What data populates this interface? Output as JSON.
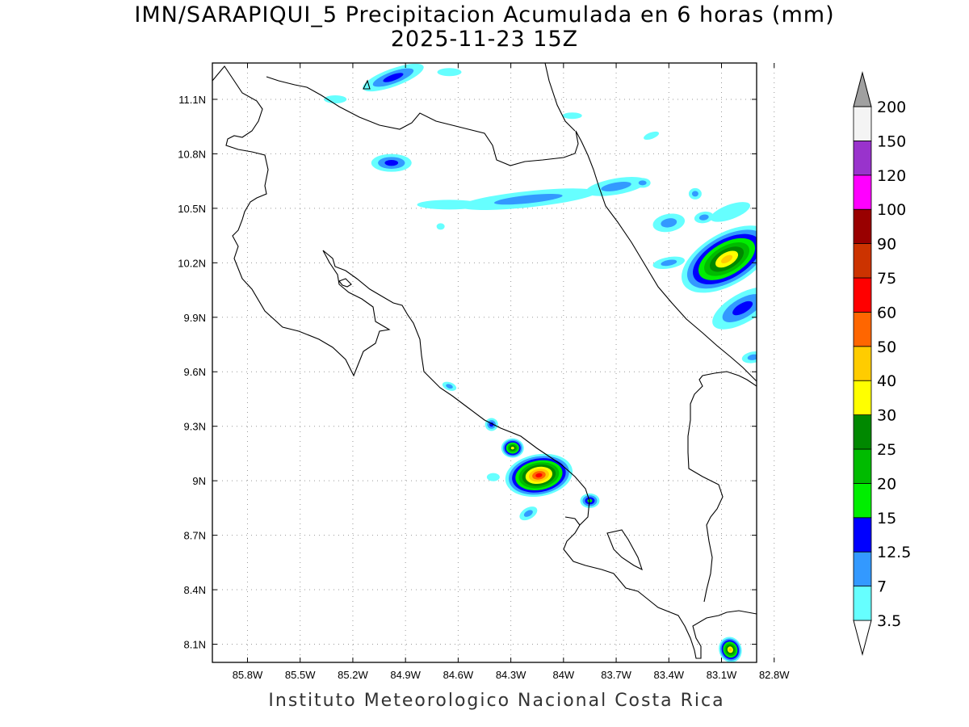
{
  "title_line1": "IMN/SARAPIQUI_5 Precipitacion Acumulada en 6 horas (mm)",
  "title_line2": "2025-11-23 15Z",
  "footer": "Instituto Meteorologico Nacional Costa Rica",
  "map": {
    "lon_range": [
      -86.0,
      -82.9
    ],
    "lat_range": [
      8.0,
      11.3
    ],
    "lon_ticks": [
      "85.8W",
      "85.5W",
      "85.2W",
      "84.9W",
      "84.6W",
      "84.3W",
      "84W",
      "83.7W",
      "83.4W",
      "83.1W",
      "82.8W"
    ],
    "lat_ticks": [
      "11.1N",
      "10.8N",
      "10.5N",
      "10.2N",
      "9.9N",
      "9.6N",
      "9.3N",
      "9N",
      "8.7N",
      "8.4N",
      "8.1N"
    ],
    "grid": "dotted"
  },
  "colorbar": {
    "labels": [
      "3.5",
      "7",
      "12.5",
      "15",
      "20",
      "25",
      "30",
      "40",
      "50",
      "60",
      "75",
      "90",
      "100",
      "120",
      "150",
      "200"
    ],
    "colors": [
      "#ffffff",
      "#66ffff",
      "#3399ff",
      "#0000ff",
      "#00ee00",
      "#00bb00",
      "#008800",
      "#ffff00",
      "#ffcc00",
      "#ff6600",
      "#ff0000",
      "#cc3300",
      "#990000",
      "#ff00ff",
      "#9933cc",
      "#f4f4f4",
      "#a0a0a0"
    ]
  },
  "precip_cells": [
    {
      "lon": -84.14,
      "lat": 9.03,
      "rx": 42,
      "ry": 26,
      "rot": -10,
      "max_level": 10
    },
    {
      "lon": -84.29,
      "lat": 9.18,
      "rx": 14,
      "ry": 12,
      "rot": 0,
      "max_level": 7
    },
    {
      "lon": -84.41,
      "lat": 9.31,
      "rx": 8,
      "ry": 8,
      "rot": 0,
      "max_level": 3
    },
    {
      "lon": -83.85,
      "lat": 8.89,
      "rx": 12,
      "ry": 9,
      "rot": 0,
      "max_level": 4
    },
    {
      "lon": -84.2,
      "lat": 8.82,
      "rx": 12,
      "ry": 7,
      "rot": -30,
      "max_level": 2
    },
    {
      "lon": -84.65,
      "lat": 9.52,
      "rx": 9,
      "ry": 5,
      "rot": 20,
      "max_level": 2
    },
    {
      "lon": -83.05,
      "lat": 8.07,
      "rx": 14,
      "ry": 16,
      "rot": -20,
      "max_level": 8
    },
    {
      "lon": -83.07,
      "lat": 10.22,
      "rx": 62,
      "ry": 32,
      "rot": -30,
      "max_level": 8
    },
    {
      "lon": -82.98,
      "lat": 9.95,
      "rx": 42,
      "ry": 18,
      "rot": -30,
      "max_level": 3
    },
    {
      "lon": -83.05,
      "lat": 10.48,
      "rx": 26,
      "ry": 9,
      "rot": -20,
      "max_level": 1
    },
    {
      "lon": -83.4,
      "lat": 10.42,
      "rx": 20,
      "ry": 11,
      "rot": -10,
      "max_level": 2
    },
    {
      "lon": -83.2,
      "lat": 10.45,
      "rx": 12,
      "ry": 7,
      "rot": -10,
      "max_level": 2
    },
    {
      "lon": -83.4,
      "lat": 10.2,
      "rx": 20,
      "ry": 7,
      "rot": -10,
      "max_level": 2
    },
    {
      "lon": -83.7,
      "lat": 10.62,
      "rx": 38,
      "ry": 10,
      "rot": -10,
      "max_level": 2
    },
    {
      "lon": -84.2,
      "lat": 10.55,
      "rx": 85,
      "ry": 10,
      "rot": -6,
      "max_level": 2
    },
    {
      "lon": -84.65,
      "lat": 10.52,
      "rx": 40,
      "ry": 6,
      "rot": 0,
      "max_level": 1
    },
    {
      "lon": -84.98,
      "lat": 10.75,
      "rx": 25,
      "ry": 11,
      "rot": 0,
      "max_level": 3
    },
    {
      "lon": -84.97,
      "lat": 11.22,
      "rx": 40,
      "ry": 11,
      "rot": -20,
      "max_level": 3
    },
    {
      "lon": -84.65,
      "lat": 11.25,
      "rx": 15,
      "ry": 5,
      "rot": 0,
      "max_level": 1
    },
    {
      "lon": -83.95,
      "lat": 11.01,
      "rx": 12,
      "ry": 4,
      "rot": 0,
      "max_level": 1
    },
    {
      "lon": -83.5,
      "lat": 10.9,
      "rx": 10,
      "ry": 4,
      "rot": -20,
      "max_level": 1
    },
    {
      "lon": -83.55,
      "lat": 10.64,
      "rx": 10,
      "ry": 6,
      "rot": 0,
      "max_level": 2
    },
    {
      "lon": -85.3,
      "lat": 11.1,
      "rx": 14,
      "ry": 5,
      "rot": 0,
      "max_level": 1
    },
    {
      "lon": -84.7,
      "lat": 10.4,
      "rx": 5,
      "ry": 4,
      "rot": 0,
      "max_level": 1
    },
    {
      "lon": -84.4,
      "lat": 9.02,
      "rx": 8,
      "ry": 5,
      "rot": 0,
      "max_level": 1
    },
    {
      "lon": -83.25,
      "lat": 10.58,
      "rx": 8,
      "ry": 7,
      "rot": 0,
      "max_level": 2
    },
    {
      "lon": -82.92,
      "lat": 9.68,
      "rx": 14,
      "ry": 7,
      "rot": -10,
      "max_level": 2
    }
  ]
}
